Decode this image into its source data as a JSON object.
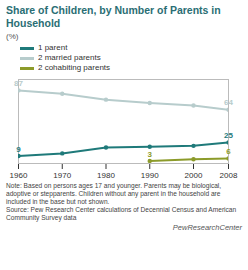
{
  "chart_data": {
    "type": "line",
    "title": "Share of Children, by Number of Parents in Household",
    "ylabel": "(%)",
    "x": [
      1960,
      1970,
      1980,
      1990,
      2000,
      2008
    ],
    "series": [
      {
        "name": "1 parent",
        "color": "#1f7a7a",
        "values": [
          9,
          12,
          19,
          20,
          21,
          25
        ],
        "value_labels": [
          "9",
          null,
          null,
          null,
          null,
          "25"
        ]
      },
      {
        "name": "2 married parents",
        "color": "#b7cccc",
        "values": [
          87,
          83,
          76,
          72,
          69,
          64
        ],
        "value_labels": [
          "87",
          null,
          null,
          null,
          null,
          "64"
        ]
      },
      {
        "name": "2 cohabiting parents",
        "color": "#8c9b2a",
        "values": [
          null,
          null,
          null,
          3,
          5,
          6
        ],
        "value_labels": [
          null,
          null,
          null,
          "3",
          null,
          "6"
        ]
      }
    ],
    "xlim": [
      1960,
      2008
    ],
    "xticks": [
      1960,
      1970,
      1980,
      1990,
      2000,
      2008
    ],
    "ylim": [
      0,
      100
    ],
    "tick_labels": "x",
    "grid": false,
    "legend": "top-left",
    "marker": "circle",
    "annotations": [
      "Note: Based on persons ages 17 and younger. Parents may be biological, adoptive or stepparents. Children without any parent in the household are included in the base but not shown.",
      "Source: Pew Research Center calculations of Decennial Census and American Community Survey data",
      "PewResearchCenter"
    ]
  }
}
